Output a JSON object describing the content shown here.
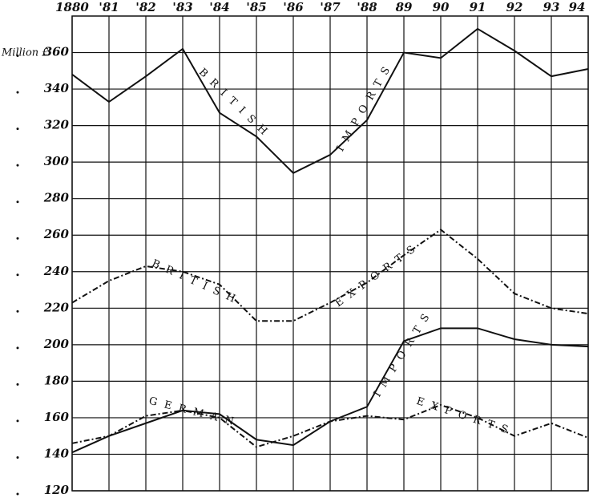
{
  "chart_data": {
    "type": "line",
    "y_label": "Million £",
    "categories": [
      "1880",
      "'81",
      "'82",
      "'83",
      "'84",
      "'85",
      "'86",
      "'87",
      "'88",
      "89",
      "90",
      "91",
      "92",
      "93",
      "94"
    ],
    "series": [
      {
        "color": "#111111",
        "style": "solid",
        "values": [
          348,
          333,
          347,
          362,
          327,
          314,
          294,
          304,
          323,
          360,
          357,
          373,
          361,
          347,
          351
        ]
      },
      {
        "color": "#111111",
        "style": "dash-dot",
        "values": [
          223,
          235,
          243,
          240,
          233,
          213,
          213,
          223,
          234,
          249,
          263,
          247,
          228,
          220,
          217
        ]
      },
      {
        "color": "#111111",
        "style": "solid",
        "values": [
          141,
          150,
          157,
          164,
          162,
          148,
          145,
          158,
          166,
          202,
          209,
          209,
          203,
          200,
          199
        ]
      },
      {
        "color": "#111111",
        "style": "dash-dot",
        "values": [
          146,
          150,
          161,
          164,
          160,
          144,
          150,
          158,
          161,
          159,
          167,
          160,
          150,
          157,
          149
        ]
      }
    ],
    "annotations": [
      "BRITISH",
      "IMPORTS",
      "BRITISH",
      "EXPORTS",
      "GERMAN",
      "IMPORTS",
      "EXPORTS"
    ],
    "ylim": [
      120,
      380
    ],
    "yticks": [
      120,
      140,
      160,
      180,
      200,
      220,
      240,
      260,
      280,
      300,
      320,
      340,
      360
    ],
    "grid": true
  }
}
